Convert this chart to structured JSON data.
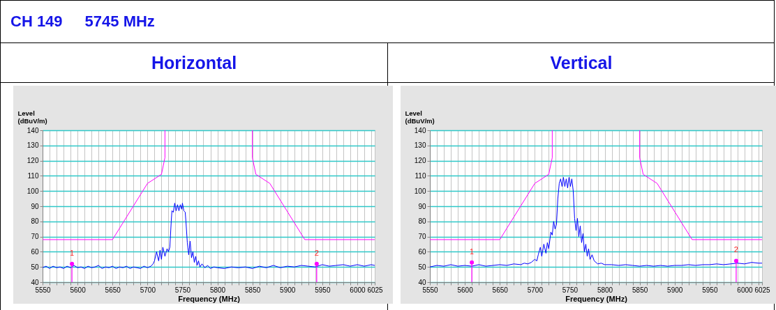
{
  "chart_data": [
    {
      "type": "line",
      "title": "Horizontal",
      "annotations": [
        "CH 149",
        "5745 MHz",
        {
          "text": "1",
          "x": 5592,
          "y": 52
        },
        {
          "text": "2",
          "x": 5942,
          "y": 52
        }
      ],
      "xlabel": "Frequency (MHz)",
      "ylabel": "Level\n(dBuV/m)",
      "xlim": [
        5550,
        6025
      ],
      "ylim": [
        40,
        140
      ],
      "xticks": [
        5550,
        {
          "value": 5560,
          "label": null
        },
        {
          "value": 5570,
          "label": null
        },
        {
          "value": 5580,
          "label": null
        },
        {
          "value": 5590,
          "label": null
        },
        5600,
        {
          "value": 5610,
          "label": null
        },
        {
          "value": 5620,
          "label": null
        },
        {
          "value": 5630,
          "label": null
        },
        {
          "value": 5640,
          "label": null
        },
        5650,
        {
          "value": 5660,
          "label": null
        },
        {
          "value": 5670,
          "label": null
        },
        {
          "value": 5680,
          "label": null
        },
        {
          "value": 5690,
          "label": null
        },
        5700,
        {
          "value": 5710,
          "label": null
        },
        {
          "value": 5720,
          "label": null
        },
        {
          "value": 5730,
          "label": null
        },
        {
          "value": 5740,
          "label": null
        },
        5750,
        {
          "value": 5760,
          "label": null
        },
        {
          "value": 5770,
          "label": null
        },
        {
          "value": 5780,
          "label": null
        },
        {
          "value": 5790,
          "label": null
        },
        5800,
        {
          "value": 5810,
          "label": null
        },
        {
          "value": 5820,
          "label": null
        },
        {
          "value": 5830,
          "label": null
        },
        {
          "value": 5840,
          "label": null
        },
        5850,
        {
          "value": 5860,
          "label": null
        },
        {
          "value": 5870,
          "label": null
        },
        {
          "value": 5880,
          "label": null
        },
        {
          "value": 5890,
          "label": null
        },
        5900,
        {
          "value": 5910,
          "label": null
        },
        {
          "value": 5920,
          "label": null
        },
        {
          "value": 5930,
          "label": null
        },
        {
          "value": 5940,
          "label": null
        },
        5950,
        {
          "value": 5960,
          "label": null
        },
        {
          "value": 5970,
          "label": null
        },
        {
          "value": 5980,
          "label": null
        },
        {
          "value": 5990,
          "label": null
        },
        6000,
        {
          "value": 6010,
          "label": null
        },
        {
          "value": 6020,
          "label": null
        },
        6025
      ],
      "yticks": [
        40,
        50,
        60,
        70,
        80,
        90,
        100,
        110,
        120,
        130,
        140
      ],
      "grid": true,
      "series": [
        {
          "type": "line",
          "color": "#0000ff",
          "x": [
            5550,
            5555,
            5560,
            5565,
            5570,
            5575,
            5580,
            5585,
            5590,
            5595,
            5600,
            5605,
            5610,
            5615,
            5620,
            5625,
            5630,
            5635,
            5640,
            5645,
            5650,
            5655,
            5660,
            5665,
            5670,
            5675,
            5680,
            5685,
            5690,
            5695,
            5700,
            5705,
            5708,
            5710,
            5713,
            5716,
            5718,
            5720,
            5722,
            5725,
            5728,
            5730,
            5732,
            5734,
            5735,
            5737,
            5739,
            5741,
            5743,
            5745,
            5747,
            5749,
            5750,
            5752,
            5754,
            5755,
            5757,
            5759,
            5761,
            5763,
            5765,
            5767,
            5769,
            5771,
            5773,
            5775,
            5778,
            5782,
            5786,
            5790,
            5795,
            5800,
            5810,
            5820,
            5830,
            5840,
            5850,
            5860,
            5870,
            5880,
            5890,
            5900,
            5910,
            5920,
            5930,
            5940,
            5950,
            5960,
            5970,
            5980,
            5990,
            6000,
            6010,
            6020,
            6025
          ],
          "values": [
            49.5,
            50.5,
            49,
            50.5,
            49.5,
            50,
            49,
            50.5,
            49.5,
            51,
            49.5,
            50,
            49,
            50.5,
            49.5,
            50,
            51,
            49,
            50,
            49.5,
            50.5,
            49,
            50,
            49.5,
            50.5,
            49,
            50,
            49.5,
            49,
            50.5,
            49.5,
            50.5,
            52,
            54,
            60,
            54,
            61,
            55,
            63,
            57,
            62,
            60,
            63,
            80,
            87,
            86,
            92,
            87,
            91,
            87,
            91,
            88,
            92,
            87,
            86,
            80,
            66,
            58,
            67,
            56,
            60,
            53,
            57,
            51,
            54,
            50,
            52,
            49.5,
            51,
            49,
            50,
            49.5,
            49,
            50,
            49.5,
            50,
            49,
            50.5,
            49.5,
            51,
            49.5,
            50.5,
            50,
            51,
            50.5,
            50,
            51.5,
            50.5,
            51,
            51.5,
            50.5,
            51.5,
            50.5,
            51.5,
            51
          ]
        },
        {
          "type": "line",
          "color": "#ff00ff",
          "x": [
            5550,
            5650,
            5700,
            5720,
            5725,
            5725,
            5787,
            5850,
            5850,
            5855,
            5875,
            5925,
            6025
          ],
          "values": [
            68,
            68,
            105,
            111,
            122,
            140,
            null,
            140,
            122,
            111,
            105,
            68,
            68
          ]
        },
        {
          "type": "lollipop",
          "color": "#ff00ff",
          "x": [
            5592,
            5942
          ],
          "values": [
            52,
            52
          ]
        }
      ]
    },
    {
      "type": "line",
      "title": "Vertical",
      "annotations": [
        {
          "text": "1",
          "x": 5610,
          "y": 53
        },
        {
          "text": "2",
          "x": 5988,
          "y": 54
        }
      ],
      "xlabel": "Frequency (MHz)",
      "ylabel": "Level\n(dBuV/m)",
      "xlim": [
        5550,
        6025
      ],
      "ylim": [
        40,
        140
      ],
      "xticks": [
        5550,
        {
          "value": 5560,
          "label": null
        },
        {
          "value": 5570,
          "label": null
        },
        {
          "value": 5580,
          "label": null
        },
        {
          "value": 5590,
          "label": null
        },
        5600,
        {
          "value": 5610,
          "label": null
        },
        {
          "value": 5620,
          "label": null
        },
        {
          "value": 5630,
          "label": null
        },
        {
          "value": 5640,
          "label": null
        },
        5650,
        {
          "value": 5660,
          "label": null
        },
        {
          "value": 5670,
          "label": null
        },
        {
          "value": 5680,
          "label": null
        },
        {
          "value": 5690,
          "label": null
        },
        5700,
        {
          "value": 5710,
          "label": null
        },
        {
          "value": 5720,
          "label": null
        },
        {
          "value": 5730,
          "label": null
        },
        {
          "value": 5740,
          "label": null
        },
        5750,
        {
          "value": 5760,
          "label": null
        },
        {
          "value": 5770,
          "label": null
        },
        {
          "value": 5780,
          "label": null
        },
        {
          "value": 5790,
          "label": null
        },
        5800,
        {
          "value": 5810,
          "label": null
        },
        {
          "value": 5820,
          "label": null
        },
        {
          "value": 5830,
          "label": null
        },
        {
          "value": 5840,
          "label": null
        },
        5850,
        {
          "value": 5860,
          "label": null
        },
        {
          "value": 5870,
          "label": null
        },
        {
          "value": 5880,
          "label": null
        },
        {
          "value": 5890,
          "label": null
        },
        5900,
        {
          "value": 5910,
          "label": null
        },
        {
          "value": 5920,
          "label": null
        },
        {
          "value": 5930,
          "label": null
        },
        {
          "value": 5940,
          "label": null
        },
        5950,
        {
          "value": 5960,
          "label": null
        },
        {
          "value": 5970,
          "label": null
        },
        {
          "value": 5980,
          "label": null
        },
        {
          "value": 5990,
          "label": null
        },
        6000,
        {
          "value": 6010,
          "label": null
        },
        {
          "value": 6020,
          "label": null
        },
        6025
      ],
      "yticks": [
        40,
        50,
        60,
        70,
        80,
        90,
        100,
        110,
        120,
        130,
        140
      ],
      "grid": true,
      "series": [
        {
          "type": "line",
          "color": "#0000ff",
          "x": [
            5550,
            5560,
            5570,
            5580,
            5590,
            5600,
            5610,
            5620,
            5630,
            5640,
            5650,
            5660,
            5670,
            5680,
            5685,
            5690,
            5695,
            5700,
            5703,
            5705,
            5708,
            5710,
            5713,
            5716,
            5718,
            5720,
            5723,
            5725,
            5727,
            5729,
            5731,
            5733,
            5735,
            5737,
            5739,
            5741,
            5743,
            5745,
            5747,
            5749,
            5751,
            5753,
            5755,
            5757,
            5759,
            5761,
            5763,
            5765,
            5767,
            5769,
            5771,
            5773,
            5775,
            5777,
            5779,
            5782,
            5785,
            5790,
            5795,
            5800,
            5810,
            5820,
            5830,
            5840,
            5850,
            5860,
            5870,
            5880,
            5890,
            5900,
            5910,
            5920,
            5930,
            5940,
            5950,
            5960,
            5970,
            5980,
            5990,
            6000,
            6010,
            6020,
            6025
          ],
          "values": [
            50,
            51,
            50.5,
            51.5,
            50.5,
            51,
            50.5,
            51.5,
            50.5,
            51,
            51.5,
            51,
            52,
            51.5,
            52.5,
            52,
            53,
            55,
            54,
            58,
            63,
            57,
            65,
            59,
            66,
            62,
            73,
            71,
            80,
            75,
            78,
            95,
            105,
            108,
            103,
            109,
            103,
            108,
            102,
            109,
            103,
            108,
            100,
            82,
            74,
            82,
            70,
            77,
            66,
            72,
            60,
            65,
            57,
            62,
            55,
            58,
            54,
            52,
            52.5,
            51.5,
            51.5,
            51,
            51.5,
            51,
            50.5,
            51,
            50.5,
            51,
            50.5,
            51,
            51,
            51.5,
            51,
            51.5,
            51.5,
            52,
            51.5,
            52,
            52.5,
            52,
            53,
            52.5,
            52.5
          ]
        },
        {
          "type": "line",
          "color": "#ff00ff",
          "x": [
            5550,
            5650,
            5700,
            5720,
            5725,
            5725,
            5787,
            5850,
            5850,
            5855,
            5875,
            5925,
            6025
          ],
          "values": [
            68,
            68,
            105,
            111,
            122,
            140,
            null,
            140,
            122,
            111,
            105,
            68,
            68
          ]
        },
        {
          "type": "lollipop",
          "color": "#ff00ff",
          "x": [
            5610,
            5988
          ],
          "values": [
            53,
            54
          ]
        }
      ]
    }
  ]
}
